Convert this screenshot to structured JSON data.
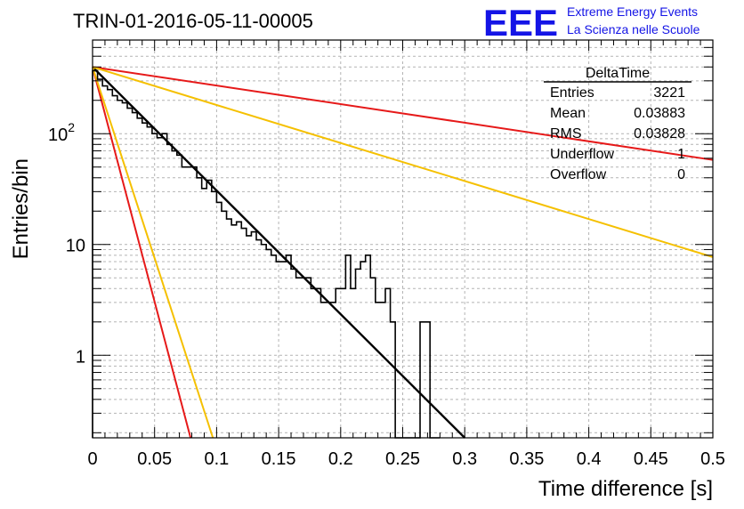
{
  "header": {
    "title": "TRIN-01-2016-05-11-00005",
    "logo_text": "EEE",
    "org_line1": "Extreme Energy Events",
    "org_line2": "La Scienza nelle Scuole"
  },
  "stats": {
    "name": "DeltaTime",
    "rows": [
      {
        "label": "Entries",
        "value": "3221"
      },
      {
        "label": "Mean",
        "value": "0.03883"
      },
      {
        "label": "RMS",
        "value": "0.03828"
      },
      {
        "label": "Underflow",
        "value": "1"
      },
      {
        "label": "Overflow",
        "value": "0"
      }
    ]
  },
  "chart_data": {
    "type": "histogram",
    "xlabel": "Time difference [s]",
    "ylabel": "Entries/bin",
    "xlim": [
      0,
      0.5
    ],
    "ylim": [
      0.18,
      700
    ],
    "yscale": "log",
    "grid": true,
    "x_ticks": [
      "0",
      "0.05",
      "0.1",
      "0.15",
      "0.2",
      "0.25",
      "0.3",
      "0.35",
      "0.4",
      "0.45",
      "0.5"
    ],
    "y_ticks": [
      {
        "value": 1,
        "label": "1"
      },
      {
        "value": 10,
        "label": "10"
      },
      {
        "value": 100,
        "label": "10",
        "exp": "2"
      }
    ],
    "bin_width": 0.004,
    "bins": [
      [
        0.0,
        370
      ],
      [
        0.004,
        310
      ],
      [
        0.008,
        270
      ],
      [
        0.012,
        250
      ],
      [
        0.016,
        220
      ],
      [
        0.02,
        200
      ],
      [
        0.024,
        190
      ],
      [
        0.028,
        170
      ],
      [
        0.032,
        155
      ],
      [
        0.036,
        138
      ],
      [
        0.04,
        125
      ],
      [
        0.044,
        115
      ],
      [
        0.048,
        100
      ],
      [
        0.052,
        92
      ],
      [
        0.056,
        100
      ],
      [
        0.06,
        80
      ],
      [
        0.064,
        70
      ],
      [
        0.068,
        64
      ],
      [
        0.072,
        50
      ],
      [
        0.076,
        50
      ],
      [
        0.08,
        50
      ],
      [
        0.084,
        40
      ],
      [
        0.088,
        32
      ],
      [
        0.092,
        38
      ],
      [
        0.096,
        30
      ],
      [
        0.1,
        24
      ],
      [
        0.104,
        20
      ],
      [
        0.108,
        17
      ],
      [
        0.112,
        15
      ],
      [
        0.116,
        16
      ],
      [
        0.12,
        14
      ],
      [
        0.124,
        12
      ],
      [
        0.128,
        13
      ],
      [
        0.132,
        11
      ],
      [
        0.136,
        10
      ],
      [
        0.14,
        9
      ],
      [
        0.144,
        8
      ],
      [
        0.148,
        7
      ],
      [
        0.152,
        7
      ],
      [
        0.156,
        8
      ],
      [
        0.16,
        6
      ],
      [
        0.164,
        5
      ],
      [
        0.168,
        5
      ],
      [
        0.172,
        5
      ],
      [
        0.176,
        4
      ],
      [
        0.18,
        4
      ],
      [
        0.184,
        3
      ],
      [
        0.188,
        3
      ],
      [
        0.192,
        3
      ],
      [
        0.196,
        4
      ],
      [
        0.2,
        4
      ],
      [
        0.204,
        8
      ],
      [
        0.208,
        4
      ],
      [
        0.212,
        6
      ],
      [
        0.216,
        7
      ],
      [
        0.22,
        8
      ],
      [
        0.224,
        5
      ],
      [
        0.228,
        3
      ],
      [
        0.232,
        3
      ],
      [
        0.236,
        4
      ],
      [
        0.24,
        2
      ],
      [
        0.244,
        0.18
      ],
      [
        0.248,
        0.18
      ],
      [
        0.252,
        0.18
      ],
      [
        0.256,
        0.18
      ],
      [
        0.26,
        0.18
      ],
      [
        0.264,
        2
      ],
      [
        0.268,
        2
      ],
      [
        0.272,
        0.18
      ],
      [
        0.276,
        0.18
      ]
    ],
    "fits": [
      {
        "color": "#000000",
        "width": 2.4,
        "points": [
          [
            0,
            400
          ],
          [
            0.3,
            0.18
          ]
        ]
      },
      {
        "color": "#e61919",
        "width": 2,
        "points": [
          [
            0,
            400
          ],
          [
            0.5,
            58
          ]
        ]
      },
      {
        "color": "#e61919",
        "width": 2,
        "points": [
          [
            0,
            400
          ],
          [
            0.079,
            0.18
          ]
        ]
      },
      {
        "color": "#f5c000",
        "width": 2,
        "points": [
          [
            0,
            400
          ],
          [
            0.5,
            7.7
          ]
        ]
      },
      {
        "color": "#f5c000",
        "width": 2,
        "points": [
          [
            0,
            400
          ],
          [
            0.097,
            0.18
          ]
        ]
      }
    ]
  }
}
